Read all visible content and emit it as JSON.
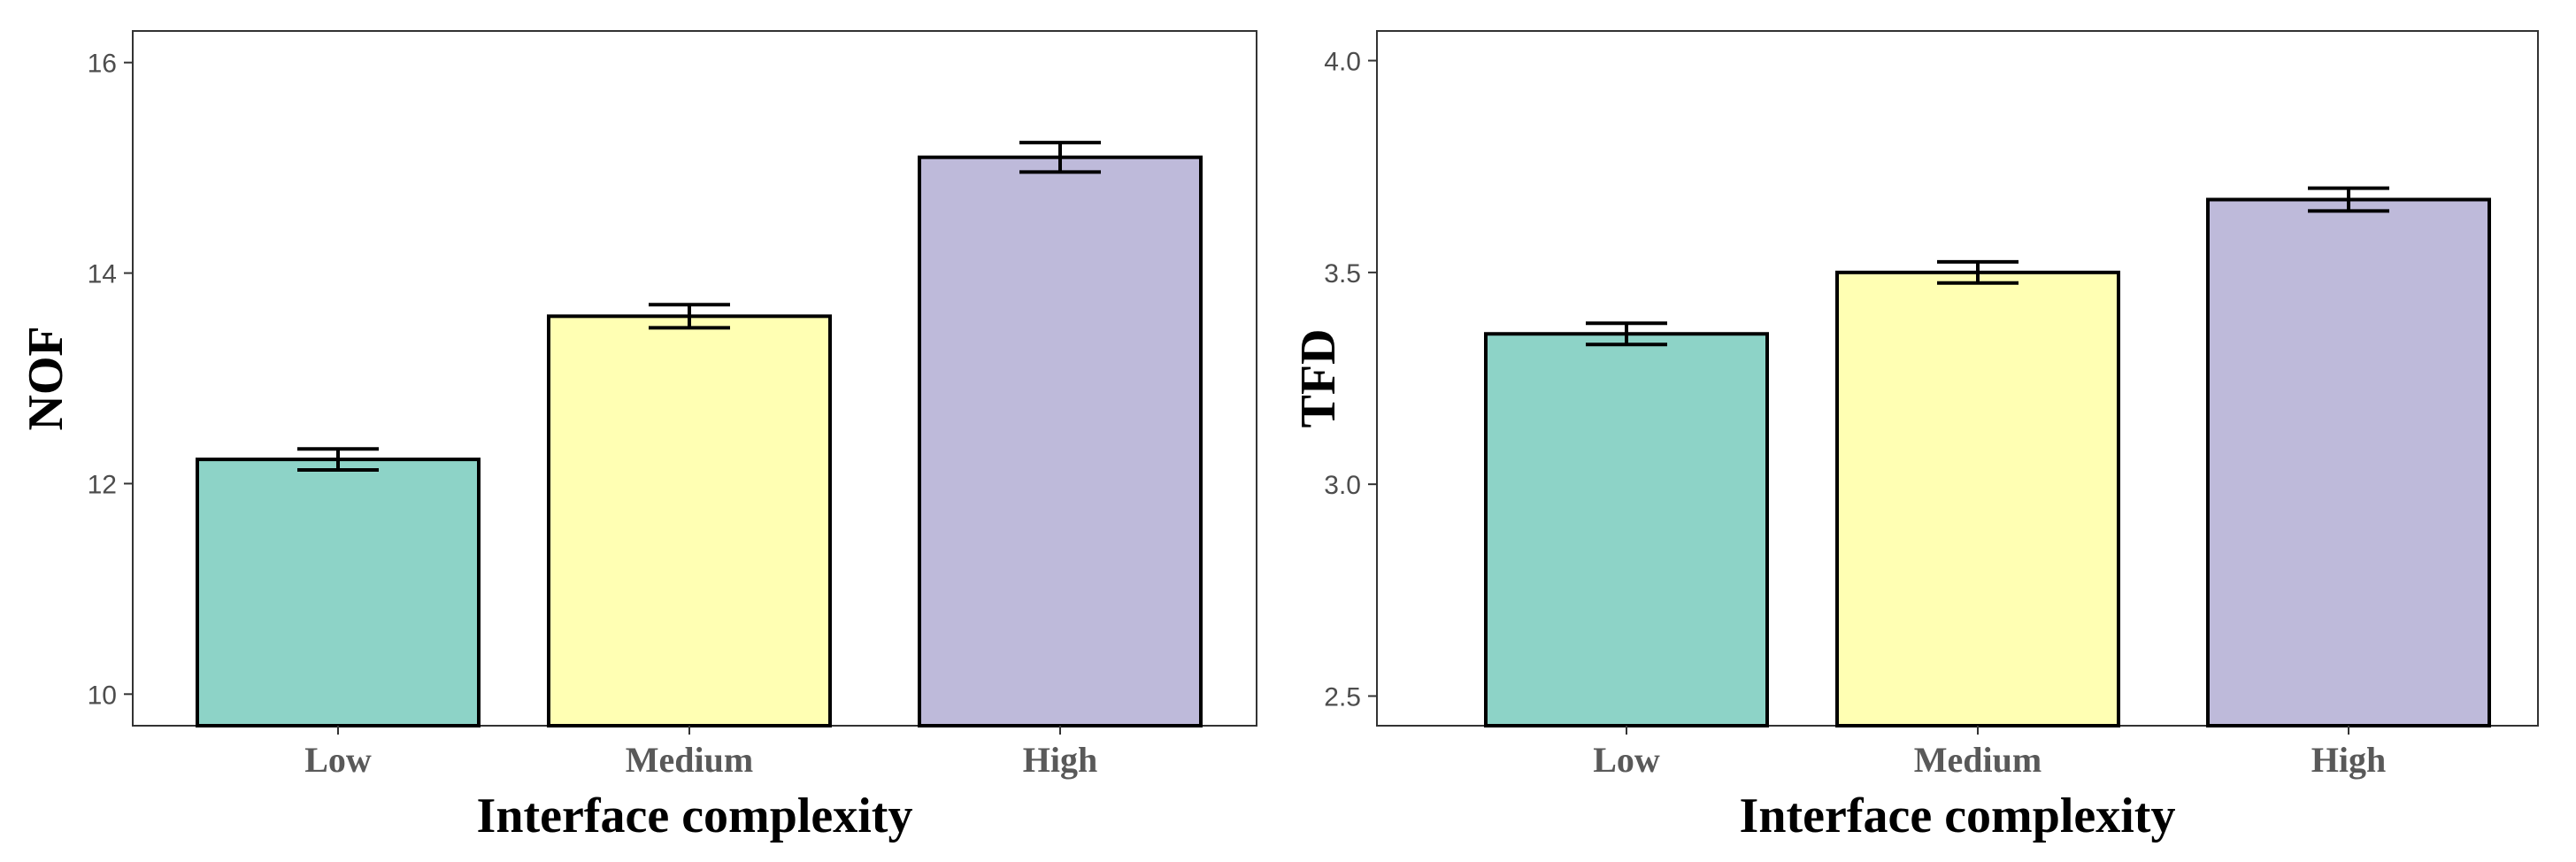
{
  "chart_data": [
    {
      "type": "bar",
      "categories": [
        "Low",
        "Medium",
        "High"
      ],
      "values": [
        12.23,
        13.59,
        15.1
      ],
      "error": [
        0.1,
        0.11,
        0.14
      ],
      "colors": [
        "#8DD3C7",
        "#FFFFB3",
        "#BEBADA"
      ],
      "xlabel": "Interface  complexity",
      "ylabel": "NOF",
      "ylim": [
        9.7,
        16.3
      ],
      "yticks": [
        10,
        12,
        14,
        16
      ],
      "ytick_labels": [
        "10",
        "12",
        "14",
        "16"
      ],
      "grid": false
    },
    {
      "type": "bar",
      "categories": [
        "Low",
        "Medium",
        "High"
      ],
      "values": [
        3.355,
        3.5,
        3.672
      ],
      "error": [
        0.025,
        0.025,
        0.027
      ],
      "colors": [
        "#8DD3C7",
        "#FFFFB3",
        "#BEBADA"
      ],
      "xlabel": "Interface  complexity",
      "ylabel": "TFD",
      "ylim": [
        2.43,
        4.07
      ],
      "yticks": [
        2.5,
        3.0,
        3.5,
        4.0
      ],
      "ytick_labels": [
        "2.5",
        "3.0",
        "3.5",
        "4.0"
      ],
      "grid": false
    }
  ]
}
